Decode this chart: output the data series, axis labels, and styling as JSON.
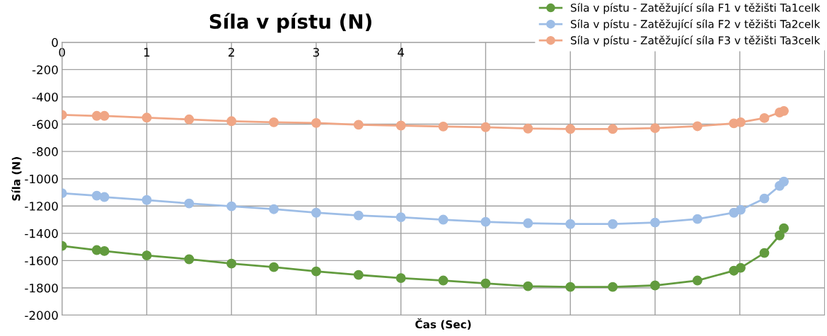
{
  "chart_data": {
    "type": "line",
    "title": "Síla v pístu (N)",
    "xlabel": "Čas (Sec)",
    "ylabel": "Síla (N)",
    "x": [
      0,
      0.41,
      0.5,
      1,
      1.5,
      2,
      2.5,
      3,
      3.5,
      4,
      4.5,
      5,
      5.5,
      6,
      6.5,
      7,
      7.5,
      7.93,
      8.01,
      8.29,
      8.47,
      8.52
    ],
    "series": [
      {
        "name": "Síla v pístu - Zatěžující síla F1 v těžišti Ta1celk",
        "color": "#629b3e",
        "values": [
          -1492,
          -1523,
          -1530,
          -1562,
          -1590,
          -1622,
          -1648,
          -1679,
          -1705,
          -1728,
          -1746,
          -1767,
          -1788,
          -1793,
          -1793,
          -1782,
          -1746,
          -1674,
          -1653,
          -1544,
          -1415,
          -1363
        ]
      },
      {
        "name": "Síla v pístu - Zatěžující síla F2 v těžišti Ta2celk",
        "color": "#9dbde6",
        "values": [
          -1106,
          -1124,
          -1134,
          -1156,
          -1181,
          -1202,
          -1223,
          -1249,
          -1269,
          -1282,
          -1300,
          -1316,
          -1326,
          -1332,
          -1332,
          -1321,
          -1295,
          -1249,
          -1228,
          -1145,
          -1052,
          -1021
        ]
      },
      {
        "name": "Síla v pístu - Zatěžující síla F3 v těžišti Ta3celk",
        "color": "#f0a685",
        "values": [
          -532,
          -539,
          -539,
          -552,
          -565,
          -578,
          -586,
          -591,
          -604,
          -610,
          -617,
          -622,
          -632,
          -635,
          -635,
          -629,
          -615,
          -594,
          -586,
          -555,
          -514,
          -503
        ]
      }
    ],
    "xlim": [
      0,
      9
    ],
    "xticks": [
      0,
      1,
      2,
      3,
      4,
      {
        "value": 5,
        "label": null
      },
      {
        "value": 6,
        "label": null
      },
      {
        "value": 7,
        "label": null
      },
      {
        "value": 8,
        "label": null
      }
    ],
    "ylim": [
      -2000,
      0
    ],
    "yticks": [
      -2000,
      -1800,
      -1600,
      -1400,
      -1200,
      -1000,
      -800,
      -600,
      -400,
      -200,
      0
    ],
    "grid": true,
    "legend": "top right",
    "marker": "circle",
    "line_style": "solid"
  }
}
